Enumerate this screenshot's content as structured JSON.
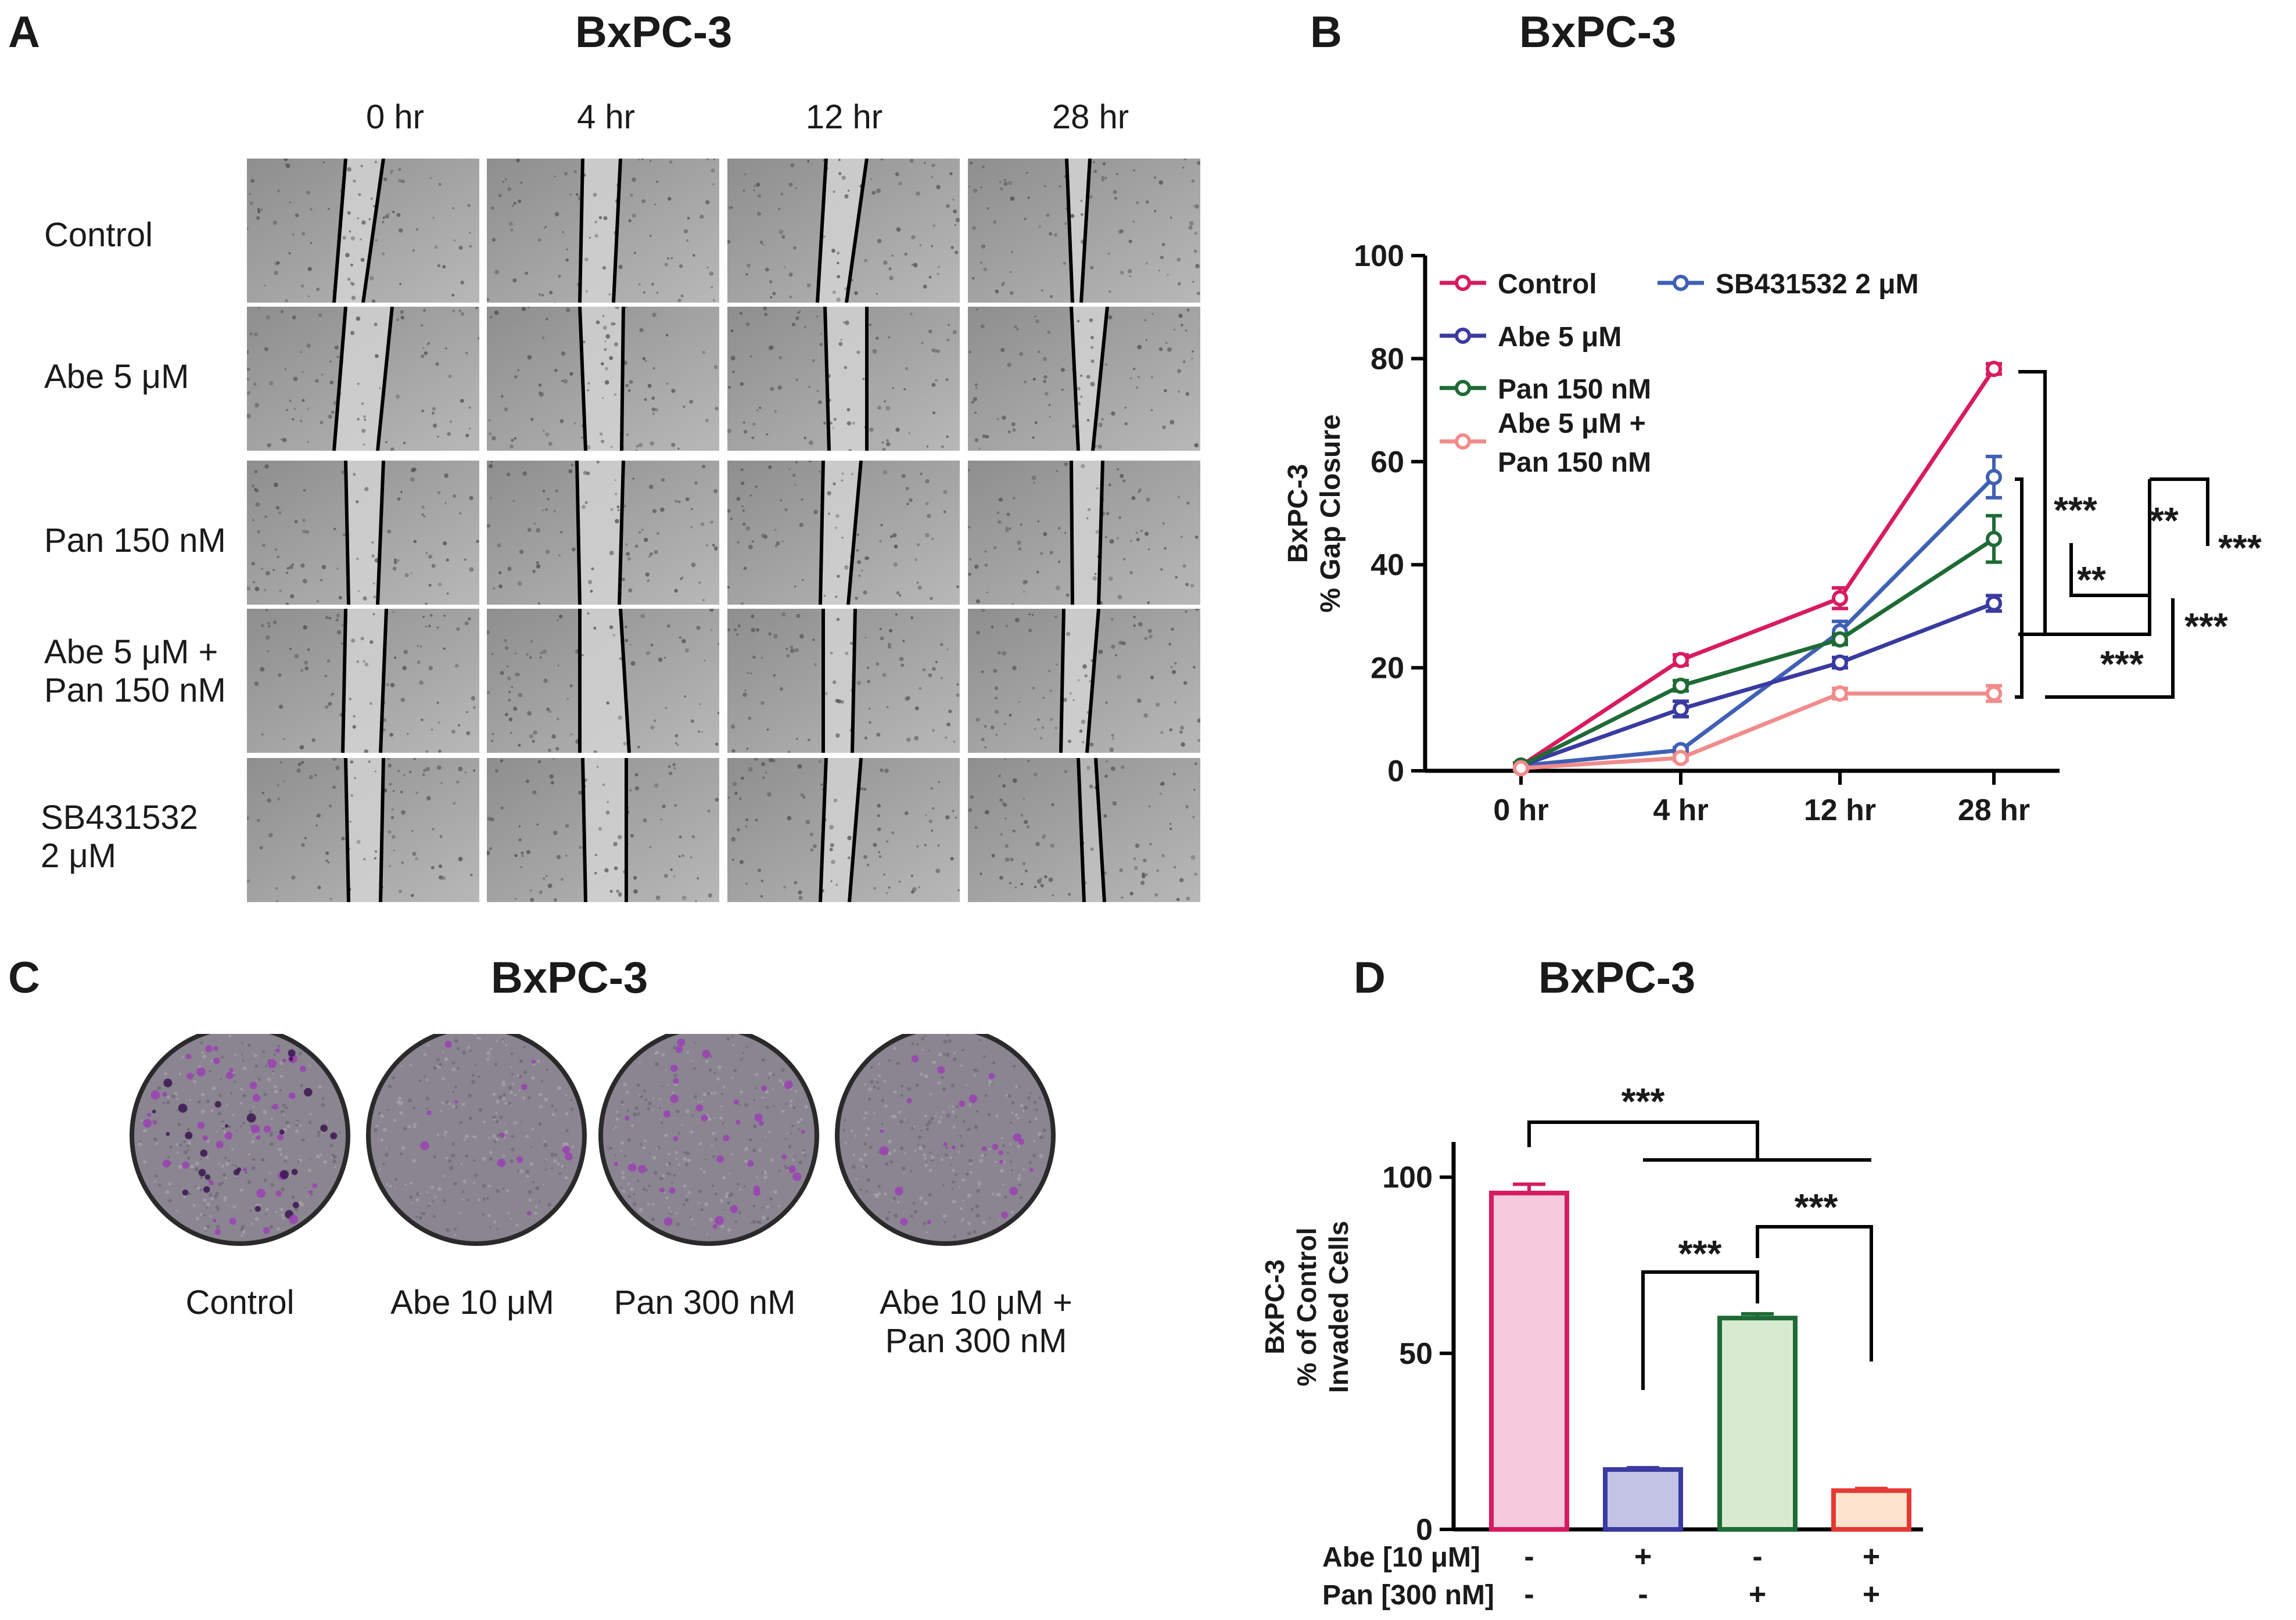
{
  "panel_a": {
    "letter": "A",
    "title": "BxPC-3",
    "timepoints": [
      "0 hr",
      "4 hr",
      "12 hr",
      "28 hr"
    ],
    "conditions": [
      "Control",
      "Abe 5 μM",
      "Pan 150 nM",
      "Abe 5 μM +\nPan 150 nM",
      "SB431532\n 2 μM"
    ]
  },
  "panel_b": {
    "letter": "B",
    "title": "BxPC-3",
    "significance": [
      "***",
      "**",
      "***",
      "**",
      "***",
      "***"
    ]
  },
  "panel_c": {
    "letter": "C",
    "title": "BxPC-3",
    "wells": [
      "Control",
      "Abe 10 μM",
      "Pan 300 nM",
      "Abe 10 μM +\nPan 300 nM"
    ]
  },
  "panel_d": {
    "letter": "D",
    "title": "BxPC-3",
    "row_labels": [
      "Abe [10 μM]",
      "Pan [300 nM]"
    ],
    "abe_signs": [
      "-",
      "+",
      "-",
      "+"
    ],
    "pan_signs": [
      "-",
      "-",
      "+",
      "+"
    ],
    "significance": [
      "***",
      "***",
      "***"
    ]
  },
  "chart_data": [
    {
      "type": "line",
      "title": "BxPC-3",
      "ylabel": "BxPC-3\n% Gap Closure",
      "xlabel": "",
      "categories": [
        "0 hr",
        "4 hr",
        "12 hr",
        "28 hr"
      ],
      "ylim": [
        0,
        100
      ],
      "yticks": [
        0,
        20,
        40,
        60,
        80,
        100
      ],
      "legend": "top-left",
      "grid": false,
      "series": [
        {
          "name": "Control",
          "values": [
            1,
            21.5,
            33.5,
            78
          ],
          "errors": [
            0.5,
            1,
            2,
            1
          ],
          "color": "#d81b60"
        },
        {
          "name": "SB431532 2 μM",
          "values": [
            1,
            4,
            27,
            57
          ],
          "errors": [
            0.3,
            0.5,
            2,
            4
          ],
          "color": "#3f60b5"
        },
        {
          "name": "Abe 5 μM",
          "values": [
            1,
            12,
            21,
            32.5
          ],
          "errors": [
            0.5,
            1.5,
            1,
            1.5
          ],
          "color": "#3a3aa0"
        },
        {
          "name": "Pan 150 nM",
          "values": [
            1,
            16.5,
            25.5,
            45
          ],
          "errors": [
            0.5,
            1,
            1,
            4.5
          ],
          "color": "#1e6b35"
        },
        {
          "name": "Abe 5 μM +\nPan 150 nM",
          "values": [
            0.5,
            2.5,
            15,
            15
          ],
          "errors": [
            0.3,
            0.5,
            1,
            1.5
          ],
          "color": "#f28b8b"
        }
      ]
    },
    {
      "type": "bar",
      "title": "BxPC-3",
      "ylabel": "BxPC-3\n% of Control\nInvaded Cells",
      "xlabel": "",
      "categories": [
        "Control",
        "Abe",
        "Pan",
        "Abe + Pan"
      ],
      "values": [
        95.5,
        17,
        60,
        11
      ],
      "errors": [
        2.5,
        0.5,
        1.2,
        0.6
      ],
      "ylim": [
        0,
        110
      ],
      "yticks": [
        0,
        50,
        100
      ],
      "colors": {
        "edges": [
          "#d81b60",
          "#3a3aa0",
          "#1e6b35",
          "#e53935"
        ],
        "fills": [
          "#f6c9dd",
          "#c3c3e6",
          "#d6ebcf",
          "#fde3cd"
        ]
      }
    }
  ]
}
